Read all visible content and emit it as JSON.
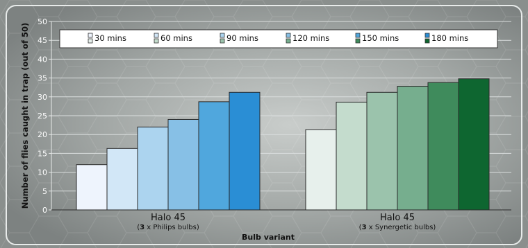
{
  "chart_data": {
    "type": "bar",
    "ylabel": "Number of flies caught in trap (out of 50)",
    "xlabel": "Bulb variant",
    "ylim": [
      0,
      50
    ],
    "yticks": [
      0,
      5,
      10,
      15,
      20,
      25,
      30,
      35,
      40,
      45,
      50
    ],
    "grid": true,
    "legend_position": "top",
    "series_labels": [
      "30 mins",
      "60 mins",
      "90 mins",
      "120 mins",
      "150 mins",
      "180 mins"
    ],
    "groups": [
      {
        "name": "Halo 45",
        "sub_count": "3",
        "sub_text": "x Philips bulbs",
        "sub_open": "(",
        "sub_close": ")",
        "values": [
          12,
          16.3,
          22,
          24,
          28.7,
          31.2
        ],
        "colors": [
          "#eef4fd",
          "#d2e7f7",
          "#acd4ef",
          "#87c0e6",
          "#50a7dd",
          "#2a8ed5"
        ]
      },
      {
        "name": "Halo 45",
        "sub_count": "3",
        "sub_text": "x Synergetic bulbs",
        "sub_open": "(",
        "sub_close": ")",
        "values": [
          21.3,
          28.6,
          31.2,
          32.8,
          33.8,
          34.8
        ],
        "colors": [
          "#e7f0ec",
          "#c4dccd",
          "#9bc3ac",
          "#76ae8e",
          "#3f8b5c",
          "#0e6630"
        ]
      }
    ],
    "colors": {
      "frame_fill": "#9ba09e",
      "grid": "#dadede",
      "bar_stroke": "#2a2a2a",
      "tick_text": "#ffffff",
      "label_text": "#111111"
    }
  }
}
